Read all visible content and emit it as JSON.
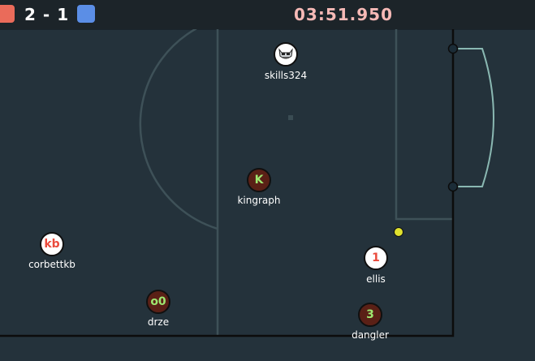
{
  "scoreboard": {
    "red_score": "2",
    "separator": "-",
    "blue_score": "1",
    "timer": "03:51.950"
  },
  "colors": {
    "red_team": "#ea6b5a",
    "blue_team": "#5b8ee6",
    "timer": "#f6b9b6",
    "field": "#24323b",
    "lines": "#4f6d72",
    "red_player_text": "#ea4a3c"
  },
  "players": [
    {
      "id": "skills324",
      "name": "skills324",
      "team": "red",
      "avatar": "bot-mask-icon"
    },
    {
      "id": "kingraph",
      "name": "kingraph",
      "team": "blue",
      "label": "K"
    },
    {
      "id": "corbettkb",
      "name": "corbettkb",
      "team": "red",
      "label": "kb"
    },
    {
      "id": "ellis",
      "name": "ellis",
      "team": "red",
      "label": "1"
    },
    {
      "id": "drze",
      "name": "drze",
      "team": "blue",
      "label": "o0"
    },
    {
      "id": "dangler",
      "name": "dangler",
      "team": "blue",
      "label": "3"
    }
  ]
}
